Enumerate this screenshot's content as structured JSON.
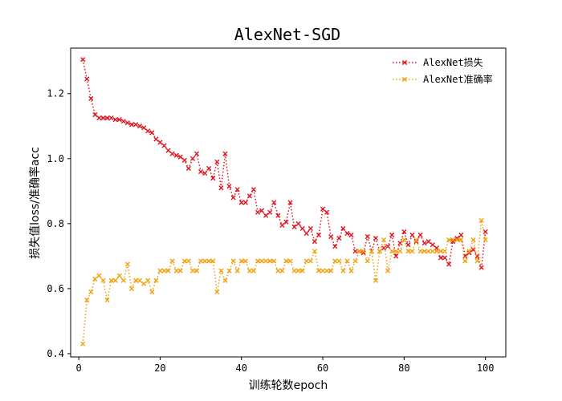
{
  "chart_data": {
    "type": "line",
    "title": "AlexNet-SGD",
    "xlabel": "训练轮数epoch",
    "ylabel": "损失值loss/准确率acc",
    "xlim": [
      -2,
      105
    ],
    "ylim": [
      0.39,
      1.34
    ],
    "xticks": [
      0,
      20,
      40,
      60,
      80,
      100
    ],
    "yticks": [
      0.4,
      0.6,
      0.8,
      1.0,
      1.2
    ],
    "grid": false,
    "legend_position": "top-right",
    "x": [
      1,
      2,
      3,
      4,
      5,
      6,
      7,
      8,
      9,
      10,
      11,
      12,
      13,
      14,
      15,
      16,
      17,
      18,
      19,
      20,
      21,
      22,
      23,
      24,
      25,
      26,
      27,
      28,
      29,
      30,
      31,
      32,
      33,
      34,
      35,
      36,
      37,
      38,
      39,
      40,
      41,
      42,
      43,
      44,
      45,
      46,
      47,
      48,
      49,
      50,
      51,
      52,
      53,
      54,
      55,
      56,
      57,
      58,
      59,
      60,
      61,
      62,
      63,
      64,
      65,
      66,
      67,
      68,
      69,
      70,
      71,
      72,
      73,
      74,
      75,
      76,
      77,
      78,
      79,
      80,
      81,
      82,
      83,
      84,
      85,
      86,
      87,
      88,
      89,
      90,
      91,
      92,
      93,
      94,
      95,
      96,
      97,
      98,
      99,
      100
    ],
    "series": [
      {
        "name": "AlexNet损失",
        "color": "#e0141e",
        "marker": "x",
        "linestyle": "dotted",
        "values": [
          1.305,
          1.245,
          1.185,
          1.135,
          1.125,
          1.125,
          1.125,
          1.125,
          1.12,
          1.12,
          1.115,
          1.11,
          1.105,
          1.105,
          1.1,
          1.095,
          1.085,
          1.08,
          1.06,
          1.05,
          1.04,
          1.025,
          1.015,
          1.01,
          1.005,
          0.995,
          0.97,
          1.0,
          1.015,
          0.96,
          0.955,
          0.97,
          0.94,
          0.99,
          0.91,
          1.015,
          0.915,
          0.88,
          0.905,
          0.865,
          0.865,
          0.885,
          0.905,
          0.835,
          0.84,
          0.825,
          0.835,
          0.865,
          0.825,
          0.795,
          0.805,
          0.865,
          0.79,
          0.8,
          0.785,
          0.77,
          0.785,
          0.745,
          0.765,
          0.845,
          0.835,
          0.76,
          0.73,
          0.755,
          0.785,
          0.77,
          0.765,
          0.715,
          0.715,
          0.71,
          0.76,
          0.715,
          0.755,
          0.715,
          0.725,
          0.73,
          0.765,
          0.7,
          0.74,
          0.775,
          0.735,
          0.765,
          0.745,
          0.765,
          0.74,
          0.745,
          0.735,
          0.725,
          0.695,
          0.695,
          0.675,
          0.745,
          0.755,
          0.765,
          0.7,
          0.71,
          0.72,
          0.7,
          0.665,
          0.775
        ]
      },
      {
        "name": "AlexNet准确率",
        "color": "#f2a10f",
        "marker": "x",
        "linestyle": "dotted",
        "values": [
          0.43,
          0.565,
          0.59,
          0.63,
          0.64,
          0.625,
          0.565,
          0.625,
          0.625,
          0.64,
          0.625,
          0.675,
          0.6,
          0.625,
          0.625,
          0.615,
          0.625,
          0.59,
          0.625,
          0.655,
          0.655,
          0.655,
          0.685,
          0.655,
          0.655,
          0.685,
          0.685,
          0.655,
          0.655,
          0.685,
          0.685,
          0.685,
          0.685,
          0.59,
          0.655,
          0.625,
          0.655,
          0.685,
          0.655,
          0.685,
          0.685,
          0.655,
          0.655,
          0.685,
          0.685,
          0.685,
          0.685,
          0.685,
          0.655,
          0.655,
          0.685,
          0.685,
          0.655,
          0.655,
          0.655,
          0.685,
          0.685,
          0.715,
          0.655,
          0.655,
          0.655,
          0.655,
          0.685,
          0.685,
          0.655,
          0.685,
          0.655,
          0.685,
          0.715,
          0.715,
          0.685,
          0.715,
          0.625,
          0.715,
          0.75,
          0.655,
          0.715,
          0.715,
          0.715,
          0.75,
          0.715,
          0.715,
          0.75,
          0.715,
          0.715,
          0.715,
          0.715,
          0.715,
          0.715,
          0.715,
          0.75,
          0.75,
          0.75,
          0.75,
          0.685,
          0.715,
          0.75,
          0.685,
          0.81,
          0.75
        ]
      }
    ]
  }
}
